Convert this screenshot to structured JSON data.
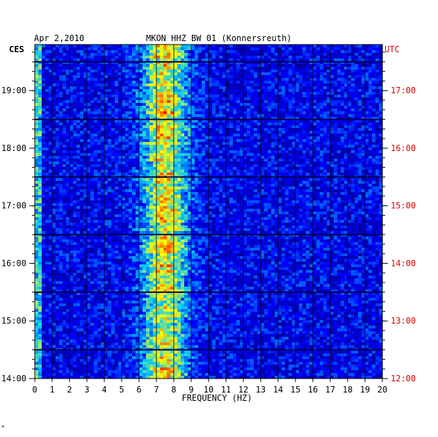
{
  "chart_data": {
    "type": "heatmap",
    "title": "MKON HHZ BW 01 (Konnersreuth)",
    "date": "Apr 2,2010",
    "xlabel": "FREQUENCY (HZ)",
    "xlim": [
      0,
      20
    ],
    "x_ticks": [
      "0",
      "1",
      "2",
      "3",
      "4",
      "5",
      "6",
      "7",
      "8",
      "9",
      "10",
      "11",
      "12",
      "13",
      "14",
      "15",
      "16",
      "17",
      "18",
      "19",
      "20"
    ],
    "left_axis": {
      "label": "CES",
      "ticks": [
        {
          "hour": 19,
          "label": "19:00"
        },
        {
          "hour": 18,
          "label": "18:00"
        },
        {
          "hour": 17,
          "label": "17:00"
        },
        {
          "hour": 16,
          "label": "16:00"
        },
        {
          "hour": 15,
          "label": "15:00"
        },
        {
          "hour": 14,
          "label": "14:00"
        }
      ]
    },
    "right_axis": {
      "label": "UTC",
      "color": "#dd0000",
      "ticks": [
        {
          "hour": 19,
          "label": "17:00"
        },
        {
          "hour": 18,
          "label": "16:00"
        },
        {
          "hour": 17,
          "label": "15:00"
        },
        {
          "hour": 16,
          "label": "14:00"
        },
        {
          "hour": 15,
          "label": "13:00"
        },
        {
          "hour": 14,
          "label": "12:00"
        }
      ]
    },
    "time_range_ces": [
      14.0,
      19.8
    ],
    "colormap": [
      "#000080",
      "#0000ff",
      "#00c8ff",
      "#ffff00",
      "#ff0000"
    ],
    "energy_band_hz": [
      6,
      9
    ],
    "footer_mark": "*"
  }
}
